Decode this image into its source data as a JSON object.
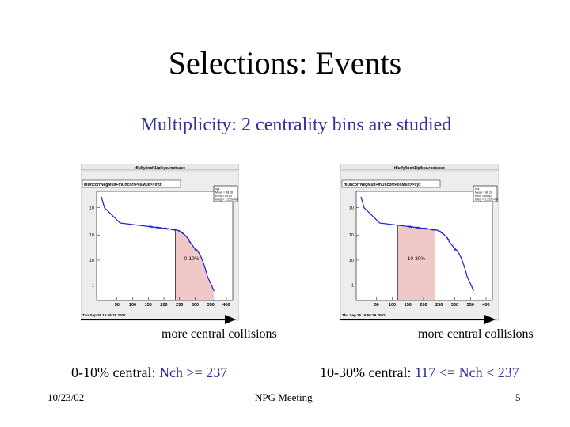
{
  "slide": {
    "title": "Selections: Events",
    "subtitle": "Multiplicity: 2 centrality bins are studied"
  },
  "plots": [
    {
      "window_title": "tflulfy/inch1/plkyz.rootsave",
      "hist_label": "mUncorrNegMult+mUncorrPosMult>>xyz",
      "stats": [
        "xyz",
        "Mean = 88.28",
        "RMS = 69.82",
        "Integ = 1.222e+06"
      ],
      "region_label": "0-10%",
      "region": [
        237,
        400
      ],
      "x_ticks": [
        "50",
        "100",
        "150",
        "200",
        "250",
        "300",
        "350",
        "400"
      ],
      "y_ticks": [
        "10",
        "10",
        "10",
        "1"
      ],
      "timestamp": "Thu Sep 26 16:55:29 2002"
    },
    {
      "window_title": "tflulfy/inch1/plkyz.rootsave",
      "hist_label": "mUncorrNegMult+mUncorrPosMult>>xyz",
      "stats": [
        "xyz",
        "Mean = 88.28",
        "RMS = 69.82",
        "Integ = 1.222e+06"
      ],
      "region_label": "10-30%",
      "region": [
        117,
        237
      ],
      "x_ticks": [
        "50",
        "100",
        "150",
        "200",
        "250",
        "300",
        "350",
        "400"
      ],
      "y_ticks": [
        "10",
        "10",
        "10",
        "1"
      ],
      "timestamp": "Thu Sep 26 16:55:29 2002"
    }
  ],
  "captions": {
    "left": "more central collisions",
    "right": "more central collisions"
  },
  "selections": {
    "left_prefix": "0-10% central: ",
    "left_value": "Nch >= 237",
    "right_prefix": "10-30% central: ",
    "right_value": "117 <= Nch < 237"
  },
  "footer": {
    "date": "10/23/02",
    "center": "NPG Meeting",
    "page": "5"
  },
  "colors": {
    "subtitle": "#33339a",
    "curve": "#1c1cd0",
    "fill": "#f0c8c8",
    "value_text": "#2c2c9a"
  }
}
